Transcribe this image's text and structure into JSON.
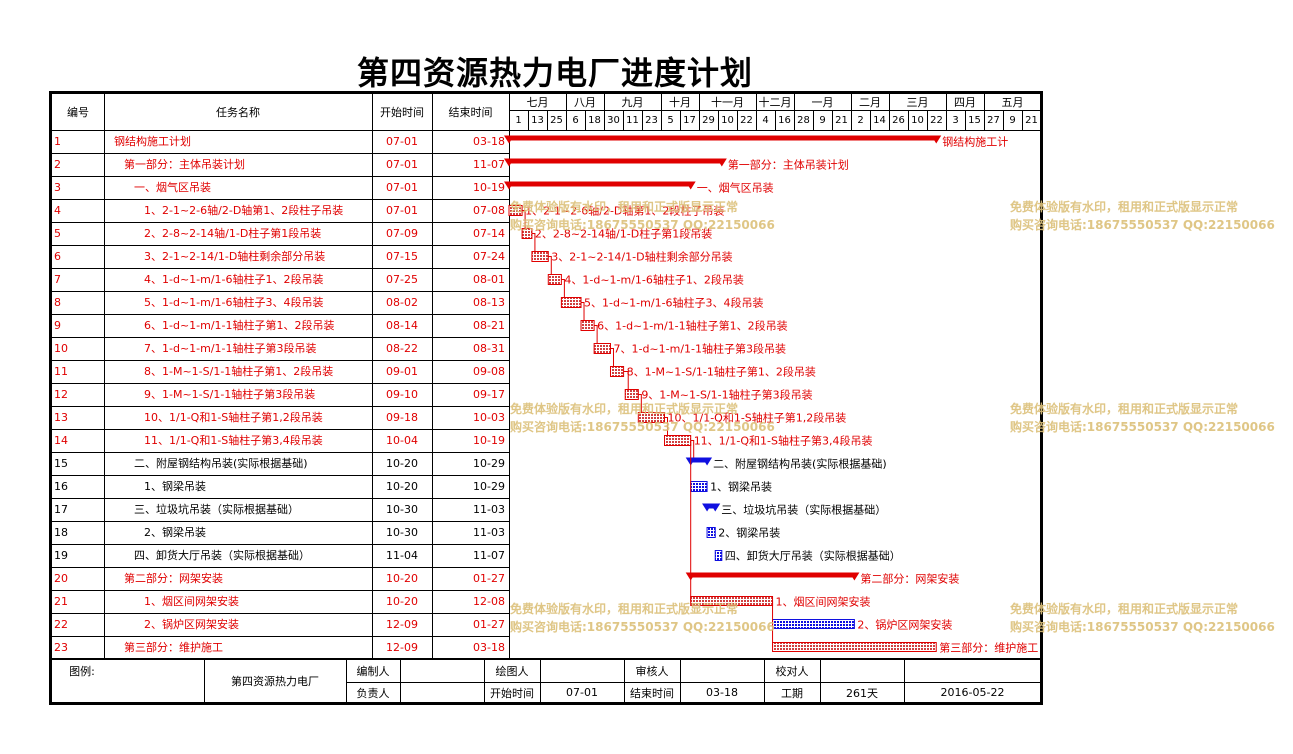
{
  "title": "第四资源热力电厂进度计划",
  "headers": {
    "id": "编号",
    "name": "任务名称",
    "start": "开始时间",
    "end": "结束时间"
  },
  "months": [
    "七月",
    "八月",
    "九月",
    "十月",
    "十一月",
    "十二月",
    "一月",
    "二月",
    "三月",
    "四月",
    "五月"
  ],
  "month_days": [
    [
      "1",
      "13",
      "25"
    ],
    [
      "6",
      "18"
    ],
    [
      "30",
      "11",
      "23"
    ],
    [
      "5",
      "17"
    ],
    [
      "29",
      "10",
      "22"
    ],
    [
      "4",
      "16"
    ],
    [
      "28",
      "9",
      "21"
    ],
    [
      "2",
      "14"
    ],
    [
      "26",
      "10",
      "22"
    ],
    [
      "3",
      "15"
    ],
    [
      "27",
      "9",
      "21"
    ]
  ],
  "tasks": [
    {
      "id": "1",
      "name": "钢结构施工计划",
      "start": "07-01",
      "end": "03-18",
      "label": "钢结构施工计"
    },
    {
      "id": "2",
      "name": "第一部分：主体吊装计划",
      "start": "07-01",
      "end": "11-07",
      "label": "第一部分：主体吊装计划"
    },
    {
      "id": "3",
      "name": "一、烟气区吊装",
      "start": "07-01",
      "end": "10-19",
      "label": "一、烟气区吊装"
    },
    {
      "id": "4",
      "name": "1、2-1~2-6轴/2-D轴第1、2段柱子吊装",
      "start": "07-01",
      "end": "07-08",
      "label": "1、2-1~2-6轴/2-D轴第1、2段柱子吊装"
    },
    {
      "id": "5",
      "name": "2、2-8~2-14轴/1-D柱子第1段吊装",
      "start": "07-09",
      "end": "07-14",
      "label": "2、2-8~2-14轴/1-D柱子第1段吊装"
    },
    {
      "id": "6",
      "name": "3、2-1~2-14/1-D轴柱剩余部分吊装",
      "start": "07-15",
      "end": "07-24",
      "label": "3、2-1~2-14/1-D轴柱剩余部分吊装"
    },
    {
      "id": "7",
      "name": "4、1-d~1-m/1-6轴柱子1、2段吊装",
      "start": "07-25",
      "end": "08-01",
      "label": "4、1-d~1-m/1-6轴柱子1、2段吊装"
    },
    {
      "id": "8",
      "name": "5、1-d~1-m/1-6轴柱子3、4段吊装",
      "start": "08-02",
      "end": "08-13",
      "label": "5、1-d~1-m/1-6轴柱子3、4段吊装"
    },
    {
      "id": "9",
      "name": "6、1-d~1-m/1-1轴柱子第1、2段吊装",
      "start": "08-14",
      "end": "08-21",
      "label": "6、1-d~1-m/1-1轴柱子第1、2段吊装"
    },
    {
      "id": "10",
      "name": "7、1-d~1-m/1-1轴柱子第3段吊装",
      "start": "08-22",
      "end": "08-31",
      "label": "7、1-d~1-m/1-1轴柱子第3段吊装"
    },
    {
      "id": "11",
      "name": "8、1-M~1-S/1-1轴柱子第1、2段吊装",
      "start": "09-01",
      "end": "09-08",
      "label": "8、1-M~1-S/1-1轴柱子第1、2段吊装"
    },
    {
      "id": "12",
      "name": "9、1-M~1-S/1-1轴柱子第3段吊装",
      "start": "09-10",
      "end": "09-17",
      "label": "9、1-M~1-S/1-1轴柱子第3段吊装"
    },
    {
      "id": "13",
      "name": "10、1/1-Q和1-S轴柱子第1,2段吊装",
      "start": "09-18",
      "end": "10-03",
      "label": "10、1/1-Q和1-S轴柱子第1,2段吊装"
    },
    {
      "id": "14",
      "name": "11、1/1-Q和1-S轴柱子第3,4段吊装",
      "start": "10-04",
      "end": "10-19",
      "label": "11、1/1-Q和1-S轴柱子第3,4段吊装"
    },
    {
      "id": "15",
      "name": "二、附屋钢结构吊装(实际根据基础)",
      "start": "10-20",
      "end": "10-29",
      "label": "二、附屋钢结构吊装(实际根据基础)"
    },
    {
      "id": "16",
      "name": "1、钢梁吊装",
      "start": "10-20",
      "end": "10-29",
      "label": "1、钢梁吊装"
    },
    {
      "id": "17",
      "name": "三、垃圾坑吊装（实际根据基础）",
      "start": "10-30",
      "end": "11-03",
      "label": "三、垃圾坑吊装（实际根据基础）"
    },
    {
      "id": "18",
      "name": "2、钢梁吊装",
      "start": "10-30",
      "end": "11-03",
      "label": "2、钢梁吊装"
    },
    {
      "id": "19",
      "name": "四、卸货大厅吊装（实际根据基础）",
      "start": "11-04",
      "end": "11-07",
      "label": "四、卸货大厅吊装（实际根据基础）"
    },
    {
      "id": "20",
      "name": "第二部分：网架安装",
      "start": "10-20",
      "end": "01-27",
      "label": "第二部分：网架安装"
    },
    {
      "id": "21",
      "name": "1、烟区间网架安装",
      "start": "10-20",
      "end": "12-08",
      "label": "1、烟区间网架安装"
    },
    {
      "id": "22",
      "name": "2、锅炉区网架安装",
      "start": "12-09",
      "end": "01-27",
      "label": "2、锅炉区网架安装"
    },
    {
      "id": "23",
      "name": "第三部分：维护施工",
      "start": "12-09",
      "end": "03-18",
      "label": "第三部分：维护施工"
    }
  ],
  "footer": {
    "legend": "图例:",
    "project": "第四资源热力电厂",
    "prepared_by": "编制人",
    "drawn_by": "绘图人",
    "reviewer": "审核人",
    "checker": "校对人",
    "responsible": "负责人",
    "start_label": "开始时间",
    "start_value": "07-01",
    "end_label": "结束时间",
    "end_value": "03-18",
    "duration_label": "工期",
    "duration_value": "261天",
    "date": "2016-05-22"
  },
  "watermark": {
    "line1": "免费体验版有水印，租用和正式版显示正常",
    "line2": "购买咨询电话:18675550537 QQ:22150066"
  },
  "colors": {
    "red": "#e00000",
    "blue": "#1010e0",
    "hatch_red": "#d04040"
  }
}
